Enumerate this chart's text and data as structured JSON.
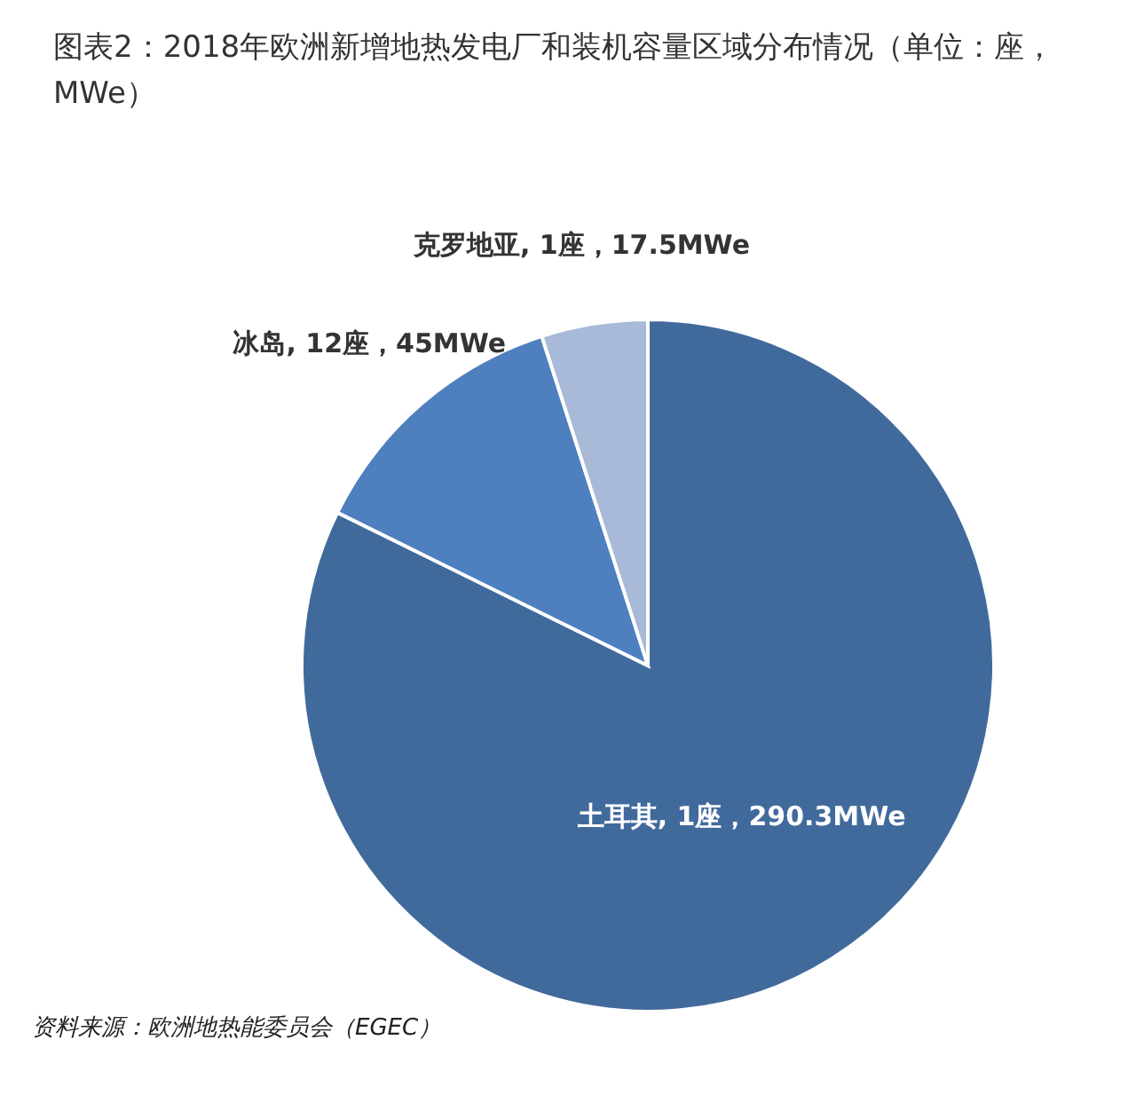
{
  "chart_data": {
    "type": "pie",
    "title": "图表2：2018年欧洲新增地热发电厂和装机容量区域分布情况（单位：座，MWe）",
    "categories": [
      "土耳其, 1座，290.3MWe",
      "冰岛, 12座，45MWe",
      "克罗地亚, 1座，17.5MWe"
    ],
    "values": [
      290.3,
      45,
      17.5
    ],
    "colors": [
      "#416a9c",
      "#4e7fbe",
      "#a9b9d8"
    ],
    "legend": false,
    "annotations": [
      "资料来源：欧洲地热能委员会（EGEC）"
    ]
  }
}
